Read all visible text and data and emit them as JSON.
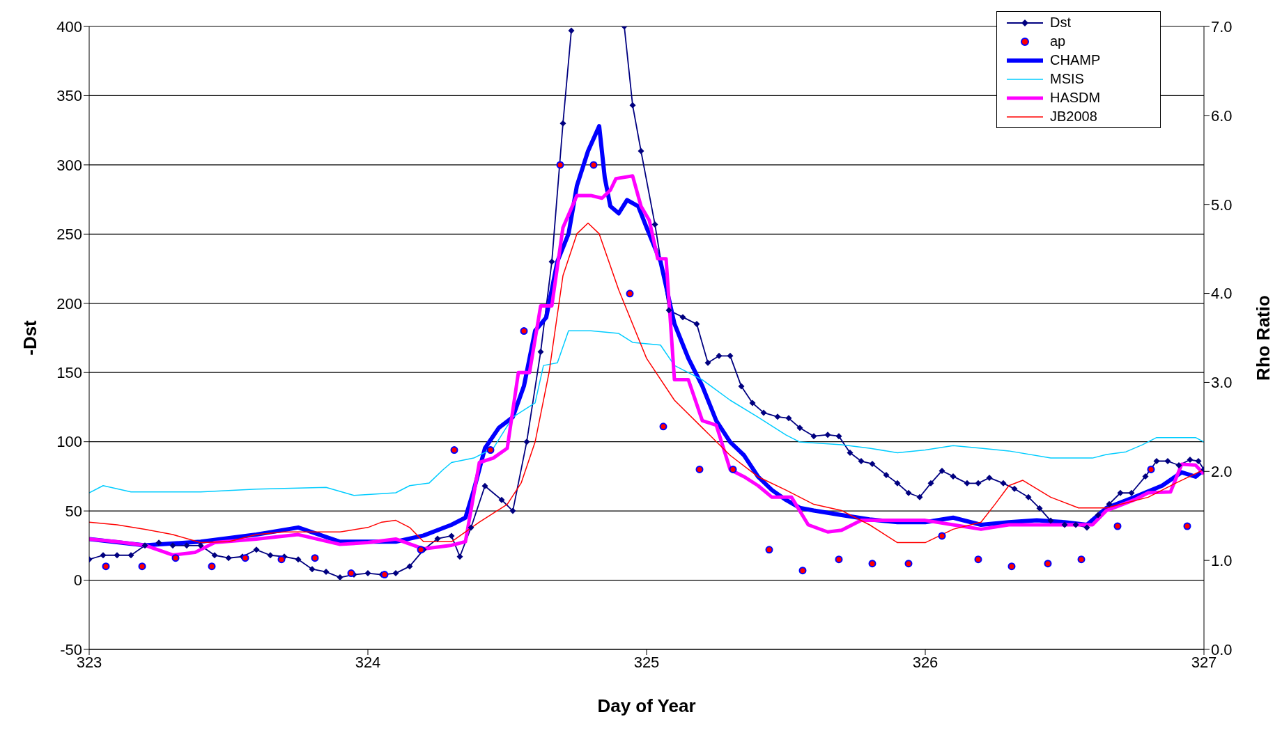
{
  "chart_data": {
    "type": "line",
    "xlabel": "Day of Year",
    "ylabel": "-Dst",
    "y2label": "Rho Ratio",
    "xlim": [
      323,
      327
    ],
    "xticks": [
      323,
      324,
      325,
      326,
      327
    ],
    "ylim": [
      -50,
      400
    ],
    "yticks": [
      -50,
      0,
      50,
      100,
      150,
      200,
      250,
      300,
      350,
      400
    ],
    "y2lim": [
      0,
      7
    ],
    "y2ticks": [
      {
        "value": 0,
        "label": "0.0"
      },
      {
        "value": 1,
        "label": "1.0"
      },
      {
        "value": 2,
        "label": "2.0"
      },
      {
        "value": 3,
        "label": "3.0"
      },
      {
        "value": 4,
        "label": "4.0"
      },
      {
        "value": 5,
        "label": "5.0"
      },
      {
        "value": 6,
        "label": "6.0"
      },
      {
        "value": 7,
        "label": "7.0"
      }
    ],
    "grid": "y",
    "legend": "top right",
    "series": [
      {
        "name": "Dst",
        "color": "#000080",
        "marker": "diamond",
        "x": [
          323.0,
          323.05,
          323.1,
          323.15,
          323.2,
          323.25,
          323.3,
          323.35,
          323.4,
          323.45,
          323.5,
          323.55,
          323.6,
          323.65,
          323.7,
          323.75,
          323.8,
          323.85,
          323.9,
          323.95,
          324.0,
          324.05,
          324.1,
          324.15,
          324.2,
          324.25,
          324.3,
          324.33,
          324.37,
          324.42,
          324.48,
          324.52,
          324.57,
          324.62,
          324.66,
          324.7,
          324.73,
          324.77,
          324.82,
          324.87,
          324.92,
          324.95,
          324.98,
          325.03,
          325.08,
          325.13,
          325.18,
          325.22,
          325.26,
          325.3,
          325.34,
          325.38,
          325.42,
          325.47,
          325.51,
          325.55,
          325.6,
          325.65,
          325.69,
          325.73,
          325.77,
          325.81,
          325.86,
          325.9,
          325.94,
          325.98,
          326.02,
          326.06,
          326.1,
          326.15,
          326.19,
          326.23,
          326.28,
          326.32,
          326.37,
          326.41,
          326.45,
          326.5,
          326.54,
          326.58,
          326.62,
          326.66,
          326.7,
          326.74,
          326.79,
          326.83,
          326.87,
          326.91,
          326.95,
          326.98,
          327.0
        ],
        "values": [
          15,
          18,
          18,
          18,
          25,
          27,
          25,
          25,
          25,
          18,
          16,
          17,
          22,
          18,
          17,
          15,
          8,
          6,
          2,
          4,
          5,
          4,
          5,
          10,
          22,
          30,
          32,
          17,
          38,
          68,
          58,
          50,
          100,
          165,
          230,
          330,
          397,
          null,
          null,
          null,
          400,
          343,
          310,
          257,
          195,
          190,
          185,
          157,
          162,
          162,
          140,
          128,
          121,
          118,
          117,
          110,
          104,
          105,
          104,
          92,
          86,
          84,
          76,
          70,
          63,
          60,
          70,
          79,
          75,
          70,
          70,
          74,
          70,
          66,
          60,
          52,
          43,
          40,
          40,
          38,
          47,
          55,
          63,
          63,
          75,
          86,
          86,
          83,
          87,
          86,
          80
        ]
      },
      {
        "name": "ap",
        "type": "scatter",
        "color": "#ff0000",
        "marker": "circle",
        "x": [
          323.06,
          323.19,
          323.31,
          323.44,
          323.56,
          323.69,
          323.81,
          323.94,
          324.06,
          324.19,
          324.31,
          324.44,
          324.56,
          324.69,
          324.81,
          324.94,
          325.06,
          325.19,
          325.31,
          325.44,
          325.56,
          325.69,
          325.81,
          325.94,
          326.06,
          326.19,
          326.31,
          326.44,
          326.56,
          326.69,
          326.81,
          326.94
        ],
        "values": [
          10,
          10,
          16,
          10,
          16,
          15,
          16,
          5,
          4,
          22,
          94,
          94,
          180,
          300,
          300,
          207,
          111,
          80,
          80,
          22,
          7,
          15,
          12,
          12,
          32,
          15,
          10,
          12,
          15,
          39,
          80,
          39
        ]
      },
      {
        "name": "CHAMP",
        "color": "#0000ff",
        "axis": "y2",
        "x": [
          323.0,
          323.2,
          323.4,
          323.6,
          323.75,
          323.9,
          324.0,
          324.1,
          324.2,
          324.3,
          324.35,
          324.38,
          324.42,
          324.47,
          324.52,
          324.56,
          324.6,
          324.64,
          324.68,
          324.72,
          324.75,
          324.79,
          324.83,
          324.85,
          324.87,
          324.9,
          324.93,
          324.97,
          325.0,
          325.05,
          325.1,
          325.15,
          325.2,
          325.25,
          325.3,
          325.35,
          325.4,
          325.45,
          325.5,
          325.55,
          325.6,
          325.7,
          325.8,
          325.9,
          326.0,
          326.1,
          326.2,
          326.3,
          326.4,
          326.5,
          326.58,
          326.65,
          326.75,
          326.85,
          326.92,
          326.97,
          327.0
        ],
        "values": [
          1.24,
          1.17,
          1.21,
          1.29,
          1.37,
          1.21,
          1.21,
          1.21,
          1.28,
          1.4,
          1.48,
          1.79,
          2.26,
          2.49,
          2.61,
          2.96,
          3.58,
          3.73,
          4.36,
          4.67,
          5.21,
          5.6,
          5.88,
          5.3,
          4.98,
          4.9,
          5.05,
          4.98,
          4.74,
          4.36,
          3.66,
          3.27,
          2.96,
          2.57,
          2.33,
          2.18,
          1.94,
          1.79,
          1.68,
          1.59,
          1.56,
          1.51,
          1.46,
          1.43,
          1.43,
          1.48,
          1.4,
          1.43,
          1.45,
          1.43,
          1.4,
          1.59,
          1.71,
          1.84,
          1.99,
          1.94,
          2.02
        ]
      },
      {
        "name": "MSIS",
        "color": "#00ccff",
        "axis": "y2",
        "x": [
          323.0,
          323.05,
          323.15,
          323.4,
          323.6,
          323.85,
          323.95,
          324.1,
          324.15,
          324.22,
          324.27,
          324.3,
          324.38,
          324.45,
          324.52,
          324.6,
          324.63,
          324.68,
          324.72,
          324.8,
          324.9,
          324.95,
          325.05,
          325.1,
          325.2,
          325.3,
          325.4,
          325.5,
          325.55,
          325.7,
          325.8,
          325.9,
          326.0,
          326.1,
          326.2,
          326.3,
          326.45,
          326.6,
          326.65,
          326.72,
          326.78,
          326.83,
          326.9,
          326.97,
          327.0
        ],
        "values": [
          1.76,
          1.84,
          1.77,
          1.77,
          1.8,
          1.82,
          1.73,
          1.76,
          1.84,
          1.87,
          2.02,
          2.1,
          2.15,
          2.26,
          2.61,
          2.77,
          3.19,
          3.22,
          3.58,
          3.58,
          3.55,
          3.45,
          3.42,
          3.19,
          3.03,
          2.8,
          2.61,
          2.41,
          2.33,
          2.3,
          2.26,
          2.21,
          2.24,
          2.29,
          2.26,
          2.23,
          2.15,
          2.15,
          2.19,
          2.22,
          2.3,
          2.38,
          2.38,
          2.38,
          2.33
        ]
      },
      {
        "name": "HASDM",
        "color": "#ff00ff",
        "axis": "y2",
        "x": [
          323.0,
          323.1,
          323.2,
          323.3,
          323.38,
          323.45,
          323.6,
          323.75,
          323.9,
          324.0,
          324.1,
          324.2,
          324.3,
          324.35,
          324.4,
          324.45,
          324.5,
          324.54,
          324.58,
          324.62,
          324.66,
          324.7,
          324.75,
          324.8,
          324.84,
          324.87,
          324.89,
          324.95,
          324.98,
          325.01,
          325.04,
          325.07,
          325.1,
          325.15,
          325.2,
          325.25,
          325.3,
          325.35,
          325.4,
          325.45,
          325.52,
          325.58,
          325.65,
          325.7,
          325.77,
          325.9,
          326.0,
          326.1,
          326.2,
          326.3,
          326.6,
          326.65,
          326.75,
          326.8,
          326.88,
          326.92,
          326.97,
          327.0
        ],
        "values": [
          1.24,
          1.21,
          1.17,
          1.06,
          1.09,
          1.2,
          1.24,
          1.29,
          1.18,
          1.2,
          1.24,
          1.13,
          1.17,
          1.21,
          2.1,
          2.15,
          2.26,
          3.11,
          3.11,
          3.86,
          3.86,
          4.74,
          5.1,
          5.1,
          5.07,
          5.16,
          5.29,
          5.32,
          4.98,
          4.82,
          4.39,
          4.39,
          3.03,
          3.03,
          2.57,
          2.52,
          2.02,
          1.94,
          1.84,
          1.71,
          1.71,
          1.4,
          1.32,
          1.34,
          1.45,
          1.45,
          1.45,
          1.4,
          1.35,
          1.4,
          1.4,
          1.56,
          1.68,
          1.76,
          1.77,
          2.08,
          2.07,
          1.97
        ]
      },
      {
        "name": "JB2008",
        "color": "#ff0000",
        "axis": "y2",
        "x": [
          323.0,
          323.1,
          323.2,
          323.3,
          323.4,
          323.5,
          323.6,
          323.7,
          323.8,
          323.9,
          324.0,
          324.05,
          324.1,
          324.15,
          324.2,
          324.3,
          324.4,
          324.5,
          324.55,
          324.6,
          324.65,
          324.7,
          324.75,
          324.79,
          324.83,
          324.9,
          325.0,
          325.1,
          325.2,
          325.3,
          325.4,
          325.5,
          325.6,
          325.7,
          325.8,
          325.9,
          326.0,
          326.1,
          326.2,
          326.25,
          326.3,
          326.35,
          326.45,
          326.55,
          326.65,
          326.8,
          326.9,
          327.0
        ],
        "values": [
          1.43,
          1.4,
          1.35,
          1.29,
          1.2,
          1.21,
          1.29,
          1.32,
          1.32,
          1.32,
          1.37,
          1.43,
          1.45,
          1.37,
          1.21,
          1.21,
          1.43,
          1.63,
          1.87,
          2.33,
          3.11,
          4.2,
          4.67,
          4.79,
          4.67,
          4.04,
          3.27,
          2.8,
          2.49,
          2.18,
          1.94,
          1.79,
          1.63,
          1.56,
          1.4,
          1.2,
          1.2,
          1.35,
          1.43,
          1.63,
          1.84,
          1.9,
          1.71,
          1.59,
          1.59,
          1.71,
          1.87,
          2.02
        ]
      }
    ]
  }
}
